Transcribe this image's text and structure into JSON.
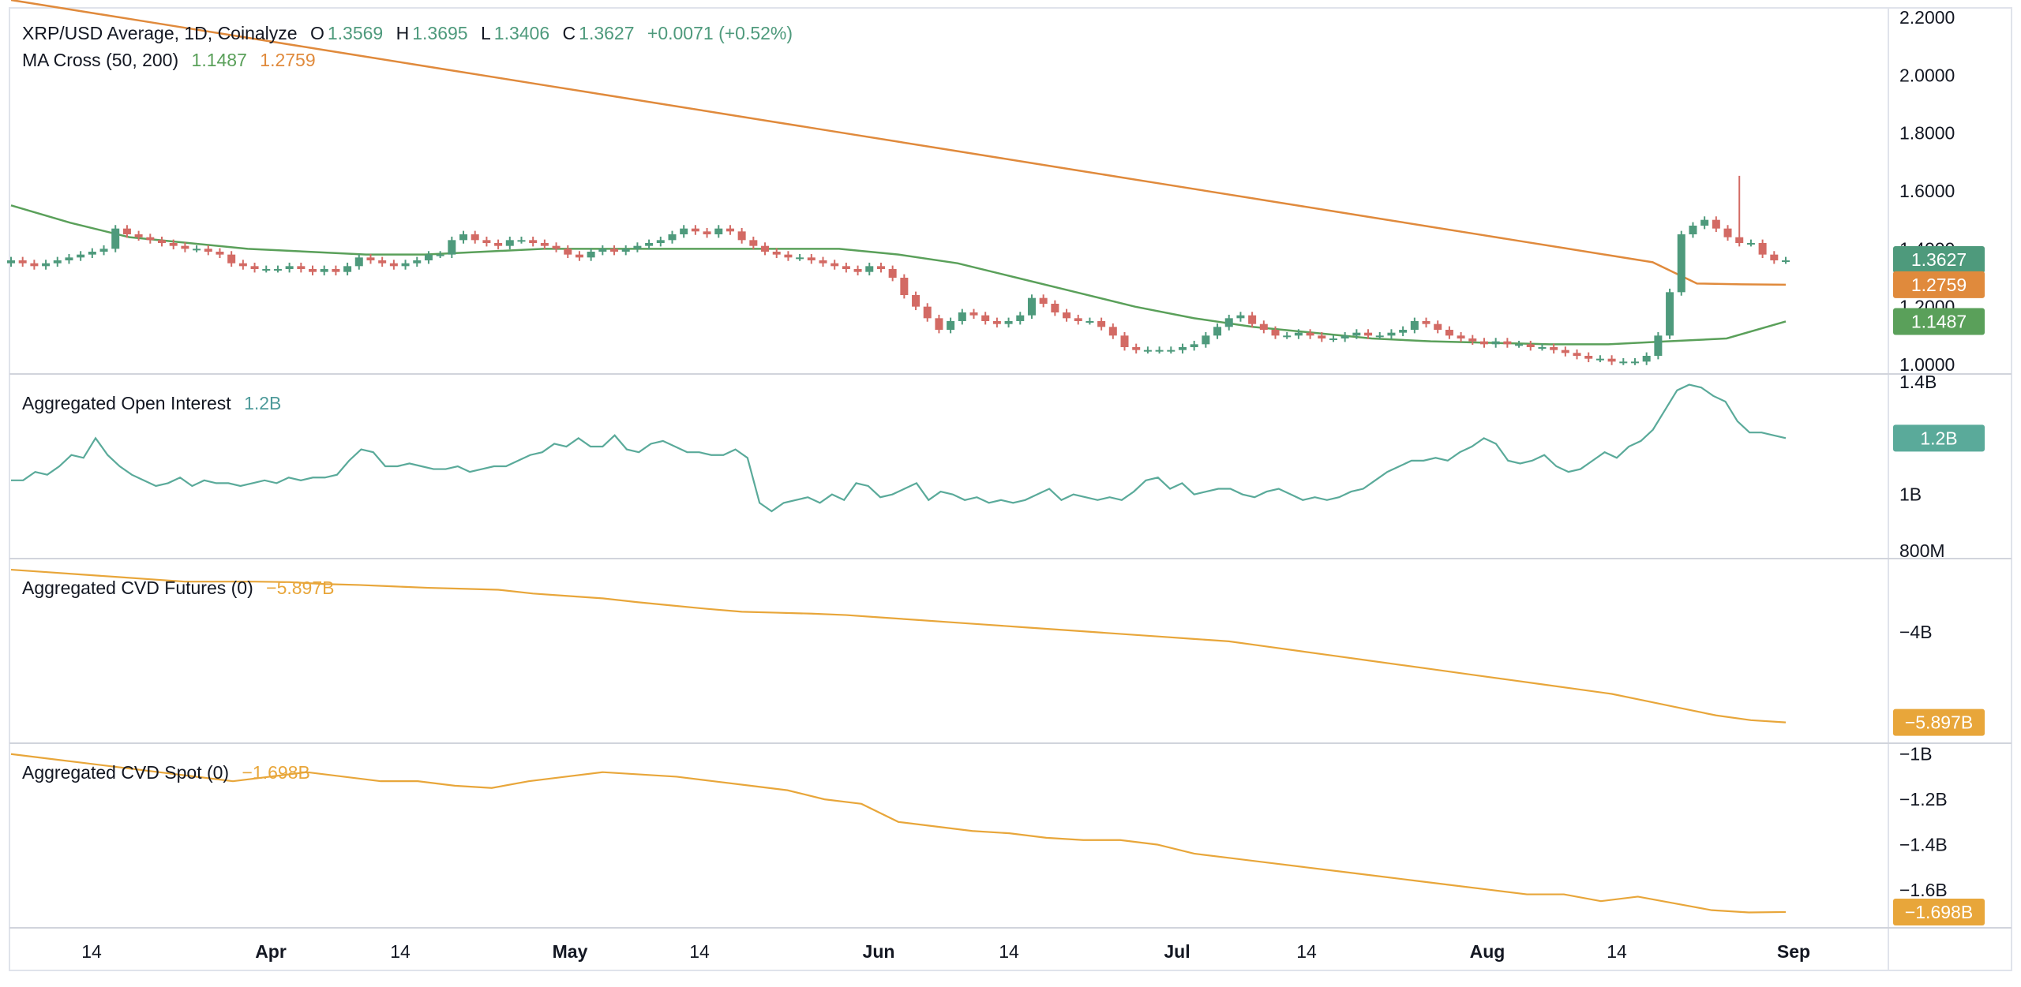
{
  "panels": {
    "price": {
      "title": "XRP/USD Average, 1D, Coinalyze",
      "open_key": "O",
      "open": "1.3569",
      "high_key": "H",
      "high": "1.3695",
      "low_key": "L",
      "low": "1.3406",
      "close_key": "C",
      "close": "1.3627",
      "change": "+0.0071 (+0.52%)",
      "ma_title": "MA Cross (50, 200)",
      "ma50_value": "1.1487",
      "ma200_value": "1.2759"
    },
    "oi": {
      "title": "Aggregated Open Interest",
      "value": "1.2B"
    },
    "cvd_futures": {
      "title": "Aggregated CVD Futures (0)",
      "value": "−5.897B"
    },
    "cvd_spot": {
      "title": "Aggregated CVD Spot (0)",
      "value": "−1.698B"
    }
  },
  "colors": {
    "up": "#4e9a7c",
    "down": "#d36a64",
    "ma50": "#5aa05a",
    "ma200": "#e08a3c",
    "oi": "#5aaa9a",
    "cvd": "#e8a63a",
    "grid": "#e0e3eb"
  },
  "chart_data": [
    {
      "type": "candlestick",
      "title": "XRP/USD Average, 1D, Coinalyze",
      "ylim": [
        1.0,
        2.2
      ],
      "yticks": [
        "2.2000",
        "2.0000",
        "1.8000",
        "1.6000",
        "1.4000",
        "1.2000",
        "1.0000"
      ],
      "ytick_values": [
        2.2,
        2.0,
        1.8,
        1.6,
        1.4,
        1.2,
        1.0
      ],
      "close_series": [
        1.36,
        1.35,
        1.34,
        1.35,
        1.36,
        1.37,
        1.38,
        1.39,
        1.4,
        1.47,
        1.45,
        1.44,
        1.43,
        1.42,
        1.41,
        1.4,
        1.4,
        1.39,
        1.38,
        1.35,
        1.34,
        1.33,
        1.33,
        1.33,
        1.34,
        1.33,
        1.32,
        1.33,
        1.32,
        1.34,
        1.37,
        1.36,
        1.35,
        1.34,
        1.35,
        1.36,
        1.38,
        1.38,
        1.43,
        1.45,
        1.43,
        1.42,
        1.41,
        1.43,
        1.43,
        1.42,
        1.41,
        1.4,
        1.38,
        1.37,
        1.39,
        1.4,
        1.39,
        1.4,
        1.41,
        1.42,
        1.43,
        1.45,
        1.47,
        1.46,
        1.45,
        1.47,
        1.46,
        1.43,
        1.41,
        1.39,
        1.38,
        1.37,
        1.37,
        1.36,
        1.35,
        1.34,
        1.33,
        1.32,
        1.34,
        1.33,
        1.3,
        1.24,
        1.2,
        1.16,
        1.12,
        1.15,
        1.18,
        1.17,
        1.15,
        1.14,
        1.15,
        1.17,
        1.23,
        1.21,
        1.18,
        1.16,
        1.15,
        1.15,
        1.13,
        1.1,
        1.06,
        1.05,
        1.05,
        1.05,
        1.05,
        1.06,
        1.07,
        1.1,
        1.13,
        1.16,
        1.17,
        1.14,
        1.12,
        1.1,
        1.1,
        1.11,
        1.1,
        1.09,
        1.09,
        1.1,
        1.11,
        1.1,
        1.1,
        1.11,
        1.12,
        1.15,
        1.14,
        1.12,
        1.1,
        1.09,
        1.08,
        1.07,
        1.08,
        1.07,
        1.07,
        1.06,
        1.06,
        1.05,
        1.04,
        1.03,
        1.02,
        1.02,
        1.01,
        1.01,
        1.01,
        1.03,
        1.1,
        1.25,
        1.45,
        1.48,
        1.5,
        1.47,
        1.44,
        1.42,
        1.42,
        1.38,
        1.36,
        1.36
      ],
      "ma_series": [
        {
          "name": "1.1487",
          "label": "MA 50",
          "last": 1.1487
        },
        {
          "name": "1.2759",
          "label": "MA 200",
          "last": 1.2759
        }
      ],
      "last_close": 1.3627
    },
    {
      "type": "line",
      "title": "Aggregated Open Interest",
      "yticks": [
        "1.4B",
        "1B",
        "800M"
      ],
      "ytick_values": [
        1.4,
        1.0,
        0.8
      ],
      "ylim": [
        0.8,
        1.4
      ],
      "unit": "B",
      "values": [
        1.05,
        1.05,
        1.08,
        1.07,
        1.1,
        1.14,
        1.13,
        1.2,
        1.14,
        1.1,
        1.07,
        1.05,
        1.03,
        1.04,
        1.06,
        1.03,
        1.05,
        1.04,
        1.04,
        1.03,
        1.04,
        1.05,
        1.04,
        1.06,
        1.05,
        1.06,
        1.06,
        1.07,
        1.12,
        1.16,
        1.15,
        1.1,
        1.1,
        1.11,
        1.1,
        1.09,
        1.09,
        1.1,
        1.08,
        1.09,
        1.1,
        1.1,
        1.12,
        1.14,
        1.15,
        1.18,
        1.17,
        1.2,
        1.17,
        1.17,
        1.21,
        1.16,
        1.15,
        1.18,
        1.19,
        1.17,
        1.15,
        1.15,
        1.14,
        1.14,
        1.16,
        1.13,
        0.97,
        0.94,
        0.97,
        0.98,
        0.99,
        0.97,
        1.0,
        0.98,
        1.04,
        1.03,
        0.99,
        1.0,
        1.02,
        1.04,
        0.98,
        1.01,
        1.0,
        0.98,
        0.99,
        0.97,
        0.98,
        0.97,
        0.98,
        1.0,
        1.02,
        0.98,
        1.0,
        0.99,
        0.98,
        0.99,
        0.98,
        1.01,
        1.05,
        1.06,
        1.02,
        1.04,
        1.0,
        1.01,
        1.02,
        1.02,
        1.0,
        0.99,
        1.01,
        1.02,
        1.0,
        0.98,
        0.99,
        0.98,
        0.99,
        1.01,
        1.02,
        1.05,
        1.08,
        1.1,
        1.12,
        1.12,
        1.13,
        1.12,
        1.15,
        1.17,
        1.2,
        1.18,
        1.12,
        1.11,
        1.12,
        1.14,
        1.1,
        1.08,
        1.09,
        1.12,
        1.15,
        1.13,
        1.17,
        1.19,
        1.23,
        1.3,
        1.37,
        1.39,
        1.38,
        1.35,
        1.33,
        1.26,
        1.22,
        1.22,
        1.21,
        1.2
      ],
      "last": "1.2B"
    },
    {
      "type": "line",
      "title": "Aggregated CVD Futures (0)",
      "yticks": [
        "−4B"
      ],
      "ytick_values": [
        -4.0
      ],
      "ylim": [
        -6.2,
        -2.6
      ],
      "unit": "B",
      "values": [
        -2.7,
        -2.75,
        -2.8,
        -2.85,
        -2.9,
        -2.95,
        -2.95,
        -2.95,
        -2.96,
        -3.0,
        -3.02,
        -3.05,
        -3.08,
        -3.1,
        -3.12,
        -3.2,
        -3.25,
        -3.3,
        -3.38,
        -3.45,
        -3.52,
        -3.58,
        -3.6,
        -3.62,
        -3.65,
        -3.7,
        -3.75,
        -3.8,
        -3.85,
        -3.9,
        -3.95,
        -4.0,
        -4.05,
        -4.1,
        -4.15,
        -4.2,
        -4.3,
        -4.4,
        -4.5,
        -4.6,
        -4.7,
        -4.8,
        -4.9,
        -5.0,
        -5.1,
        -5.2,
        -5.3,
        -5.45,
        -5.6,
        -5.75,
        -5.85,
        -5.897
      ],
      "last": "−5.897B"
    },
    {
      "type": "line",
      "title": "Aggregated CVD Spot (0)",
      "yticks": [
        "−1B",
        "−1.2B",
        "−1.4B",
        "−1.6B"
      ],
      "ytick_values": [
        -1.0,
        -1.2,
        -1.4,
        -1.6
      ],
      "ylim": [
        -1.74,
        -0.98
      ],
      "unit": "B",
      "values": [
        -1.0,
        -1.02,
        -1.04,
        -1.06,
        -1.08,
        -1.1,
        -1.12,
        -1.1,
        -1.08,
        -1.1,
        -1.12,
        -1.12,
        -1.14,
        -1.15,
        -1.12,
        -1.1,
        -1.08,
        -1.09,
        -1.1,
        -1.12,
        -1.14,
        -1.16,
        -1.2,
        -1.22,
        -1.3,
        -1.32,
        -1.34,
        -1.35,
        -1.37,
        -1.38,
        -1.38,
        -1.4,
        -1.44,
        -1.46,
        -1.48,
        -1.5,
        -1.52,
        -1.54,
        -1.56,
        -1.58,
        -1.6,
        -1.62,
        -1.62,
        -1.65,
        -1.63,
        -1.66,
        -1.69,
        -1.7,
        -1.698
      ],
      "last": "−1.698B"
    }
  ],
  "x_axis": {
    "ticks": [
      "14",
      "Apr",
      "14",
      "May",
      "14",
      "Jun",
      "14",
      "Jul",
      "14",
      "Aug",
      "14",
      "Sep"
    ]
  }
}
